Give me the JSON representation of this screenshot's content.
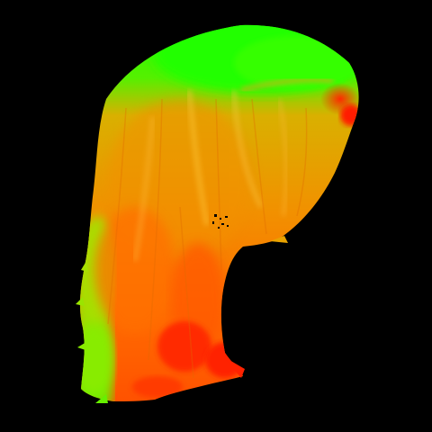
{
  "render": {
    "subject": "hair-strand-orientation-map",
    "background_color": "#000000",
    "colors": {
      "green": "#22ff00",
      "yellow_green": "#a8e300",
      "orange_yellow": "#e9a300",
      "orange": "#ff7a00",
      "red_orange": "#ff4a00",
      "red": "#ff1f00"
    }
  }
}
